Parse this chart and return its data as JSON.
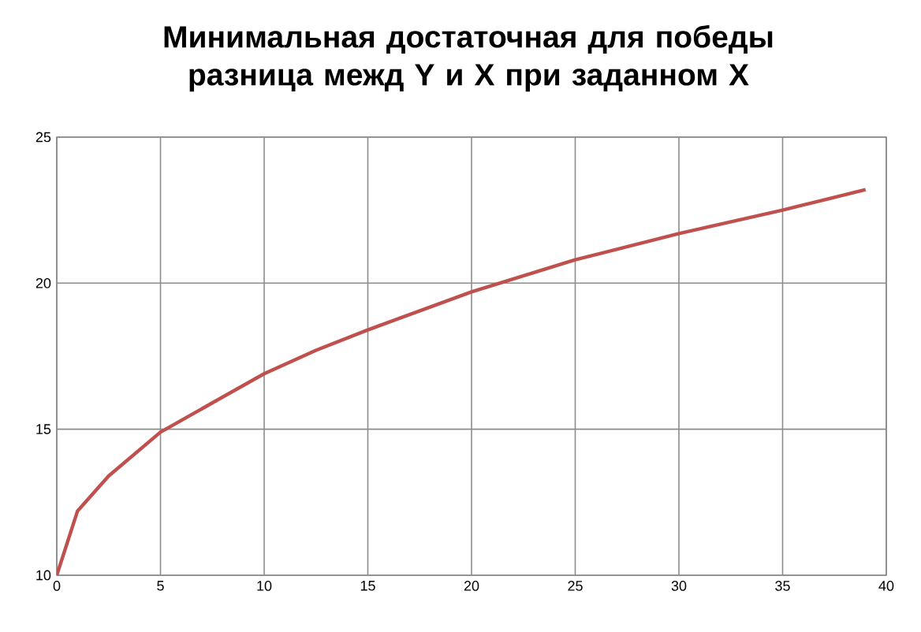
{
  "chart_data": {
    "type": "line",
    "title": "Минимальная достаточная для победы разница межд Y и X при заданном X",
    "x": [
      0,
      1,
      2.5,
      5,
      7.5,
      10,
      12.5,
      15,
      20,
      25,
      30,
      35,
      39
    ],
    "series": [
      {
        "color": "#c0504d",
        "values": [
          10,
          12.2,
          13.4,
          14.9,
          15.9,
          16.9,
          17.7,
          18.4,
          19.7,
          20.8,
          21.7,
          22.5,
          23.2
        ]
      }
    ],
    "xlim": [
      0,
      40
    ],
    "ylim": [
      10,
      25
    ],
    "xticks": [
      0,
      5,
      10,
      15,
      20,
      25,
      30,
      35,
      40
    ],
    "yticks": [
      10,
      15,
      20,
      25
    ],
    "grid": true,
    "marker": "none",
    "line_style": "solid"
  }
}
